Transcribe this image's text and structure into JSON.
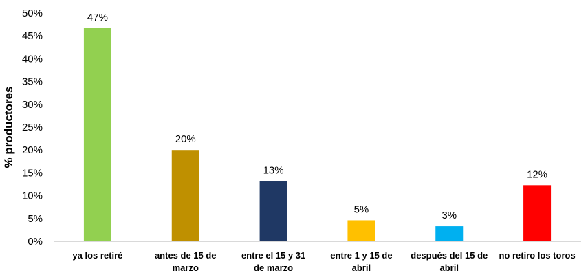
{
  "chart_data": {
    "type": "bar",
    "title": "",
    "xlabel": "",
    "ylabel": "% productores",
    "categories": [
      [
        "ya los retiré"
      ],
      [
        "antes de 15 de",
        "marzo"
      ],
      [
        "entre el 15  y 31",
        "de marzo"
      ],
      [
        "entre 1 y 15 de",
        "abril"
      ],
      [
        "después del 15 de",
        "abril"
      ],
      [
        "no retiro los toros"
      ]
    ],
    "values": [
      47,
      20,
      13,
      5,
      3,
      12
    ],
    "data_labels": [
      "47%",
      "20%",
      "13%",
      "5%",
      "3%",
      "12%"
    ],
    "display_values": [
      46.7,
      20.0,
      13.2,
      4.6,
      3.3,
      12.3
    ],
    "colors": [
      "#92D050",
      "#BF9000",
      "#1F3864",
      "#FFC000",
      "#00B0F0",
      "#FF0000"
    ],
    "ylim": [
      0,
      50
    ],
    "yticks": [
      "0%",
      "5%",
      "10%",
      "15%",
      "20%",
      "25%",
      "30%",
      "35%",
      "40%",
      "45%",
      "50%"
    ],
    "grid": false,
    "legend": "none"
  }
}
